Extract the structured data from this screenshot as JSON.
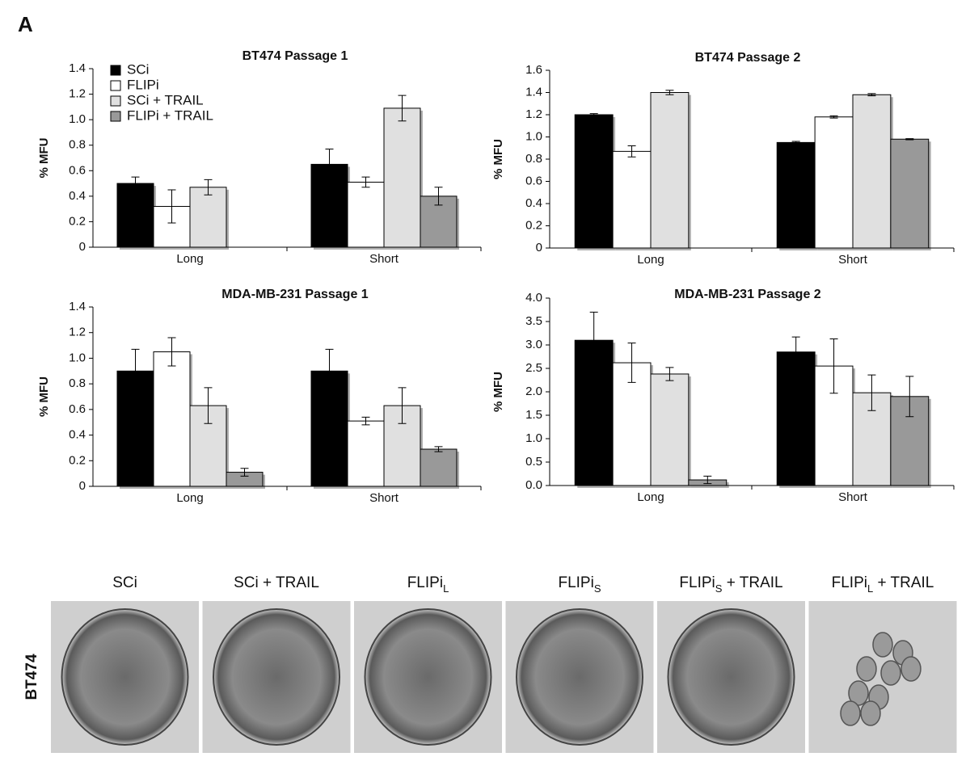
{
  "panel_label": "A",
  "chart_data": [
    {
      "type": "bar",
      "title": "BT474 Passage 1",
      "y_label": "% MFU",
      "legend": true,
      "categories": [
        "Long",
        "Short"
      ],
      "ylim": [
        0,
        1.4
      ],
      "yticks": [
        0,
        0.2,
        0.4,
        0.6,
        0.8,
        {
          "value": 1,
          "label": "1.0"
        },
        1.2,
        1.4
      ],
      "series": [
        {
          "name": "SCi",
          "color": "#000000",
          "values": [
            0.5,
            0.65
          ],
          "errors": [
            0.05,
            0.12
          ]
        },
        {
          "name": "FLIPi",
          "color": "#ffffff",
          "values": [
            0.32,
            0.51
          ],
          "errors": [
            0.13,
            0.04
          ]
        },
        {
          "name": "SCi + TRAIL",
          "color": "#e0e0e0",
          "values": [
            0.47,
            1.09
          ],
          "errors": [
            0.06,
            0.1
          ]
        },
        {
          "name": "FLIPi + TRAIL",
          "color": "#999999",
          "values": [
            null,
            0.4
          ],
          "errors": [
            null,
            0.07
          ]
        }
      ]
    },
    {
      "type": "bar",
      "title": "BT474 Passage 2",
      "y_label": "% MFU",
      "categories": [
        "Long",
        "Short"
      ],
      "ylim": [
        0,
        1.6
      ],
      "yticks": [
        0,
        0.2,
        0.4,
        0.6,
        0.8,
        {
          "value": 1,
          "label": "1.0"
        },
        1.2,
        1.4,
        1.6
      ],
      "series": [
        {
          "color": "#000000",
          "values": [
            1.2,
            0.95
          ],
          "errors": [
            0.01,
            0.01
          ]
        },
        {
          "color": "#ffffff",
          "values": [
            0.87,
            1.18
          ],
          "errors": [
            0.05,
            0.01
          ]
        },
        {
          "color": "#e0e0e0",
          "values": [
            1.4,
            1.38
          ],
          "errors": [
            0.02,
            0.01
          ]
        },
        {
          "color": "#999999",
          "values": [
            0,
            0.98
          ],
          "errors": [
            null,
            0.005
          ]
        }
      ]
    },
    {
      "type": "bar",
      "title": "MDA-MB-231 Passage 1",
      "y_label": "% MFU",
      "categories": [
        "Long",
        "Short"
      ],
      "ylim": [
        0,
        1.4
      ],
      "yticks": [
        0,
        0.2,
        0.4,
        0.6,
        0.8,
        {
          "value": 1,
          "label": "1.0"
        },
        1.2,
        1.4
      ],
      "series": [
        {
          "color": "#000000",
          "values": [
            0.9,
            0.9
          ],
          "errors": [
            0.17,
            0.17
          ]
        },
        {
          "color": "#ffffff",
          "values": [
            1.05,
            0.51
          ],
          "errors": [
            0.11,
            0.03
          ]
        },
        {
          "color": "#e0e0e0",
          "values": [
            0.63,
            0.63
          ],
          "errors": [
            0.14,
            0.14
          ]
        },
        {
          "color": "#999999",
          "values": [
            0.11,
            0.29
          ],
          "errors": [
            0.03,
            0.02
          ]
        }
      ]
    },
    {
      "type": "bar",
      "title": "MDA-MB-231 Passage 2",
      "y_label": "% MFU",
      "categories": [
        "Long",
        "Short"
      ],
      "ylim": [
        0,
        4
      ],
      "yticks": [
        {
          "value": 0,
          "label": "0.0"
        },
        0.5,
        {
          "value": 1,
          "label": "1.0"
        },
        1.5,
        {
          "value": 2,
          "label": "2.0"
        },
        2.5,
        {
          "value": 3,
          "label": "3.0"
        },
        3.5,
        {
          "value": 4,
          "label": "4.0"
        }
      ],
      "series": [
        {
          "color": "#000000",
          "values": [
            3.1,
            2.85
          ],
          "errors": [
            0.6,
            0.32
          ]
        },
        {
          "color": "#ffffff",
          "values": [
            2.62,
            2.55
          ],
          "errors": [
            0.42,
            0.58
          ]
        },
        {
          "color": "#e0e0e0",
          "values": [
            2.38,
            1.98
          ],
          "errors": [
            0.14,
            0.38
          ]
        },
        {
          "color": "#999999",
          "values": [
            0.12,
            1.9
          ],
          "errors": [
            0.08,
            0.43
          ]
        }
      ]
    }
  ],
  "images": {
    "row_label": "BT474",
    "captions": [
      {
        "text": "SCi"
      },
      {
        "text": "SCi + TRAIL"
      },
      {
        "text": "FLIPi",
        "sub": "L"
      },
      {
        "text": "FLIPi",
        "sub": "S"
      },
      {
        "text": "FLIPi",
        "sub": "S",
        "suffix": " + TRAIL"
      },
      {
        "text": "FLIPi",
        "sub": "L",
        "suffix": " + TRAIL"
      }
    ]
  }
}
